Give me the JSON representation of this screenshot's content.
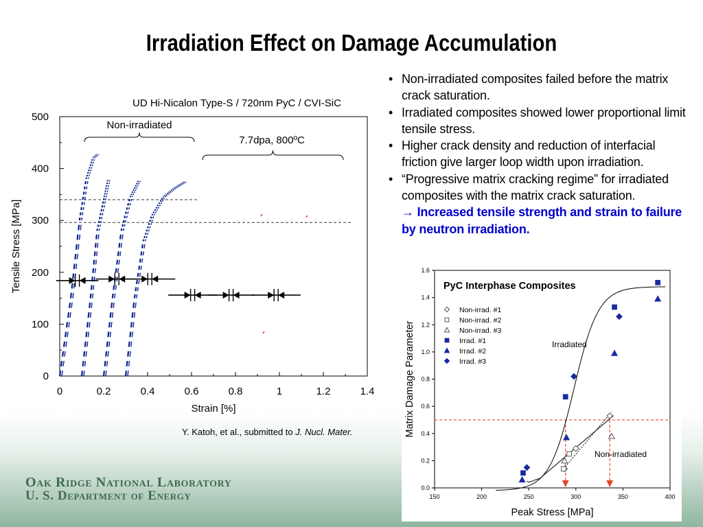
{
  "slide": {
    "title": "Irradiation Effect on Damage Accumulation",
    "bullets": [
      {
        "text": "Non-irradiated composites failed before the matrix crack saturation."
      },
      {
        "text": "Irradiated composites showed lower proportional limit tensile stress."
      },
      {
        "text": "Higher crack density and reduction of interfacial friction give larger loop width upon irradiation."
      },
      {
        "text": "“Progressive matrix cracking regime” for irradiated composites with the matrix crack saturation.",
        "highlight": "→ Increased tensile strength and strain to failure by neutron irradiation."
      }
    ],
    "bullet_symbol": "•",
    "footer": {
      "line1": "Oak Ridge National Laboratory",
      "line2": "U. S. Department of Energy",
      "color": "#3f6b50"
    }
  },
  "chart_data": [
    {
      "type": "line",
      "title": "UD Hi-Nicalon Type-S / 720nm PyC / CVI-SiC",
      "xlabel": "Strain [%]",
      "ylabel": "Tensile Stress [MPa]",
      "xlim": [
        0,
        1.4
      ],
      "ylim": [
        0,
        500
      ],
      "xticks": [
        "0",
        "0.2",
        "0.4",
        "0.6",
        "0.8",
        "1",
        "1.2",
        "1.4"
      ],
      "yticks": [
        "0",
        "100",
        "200",
        "300",
        "400",
        "500"
      ],
      "annotations": {
        "group1": "Non-irradiated",
        "group2": "7.7dpa, 800ºC",
        "citation": "Y. Katoh, et al., submitted to ",
        "journal": "J. Nucl. Mater."
      },
      "reference_lines": [
        {
          "y": 340,
          "x_end": 0.63
        },
        {
          "y": 296,
          "x_end": 1.33
        }
      ],
      "color": "#0a1f8f",
      "series": [
        {
          "values": [
            [
              0.0,
              0
            ],
            [
              0.05,
              150
            ],
            [
              0.09,
              300
            ],
            [
              0.12,
              380
            ],
            [
              0.15,
              420
            ],
            [
              0.17,
              428
            ]
          ]
        },
        {
          "values": [
            [
              0.1,
              0
            ],
            [
              0.14,
              150
            ],
            [
              0.17,
              280
            ],
            [
              0.2,
              340
            ],
            [
              0.22,
              380
            ]
          ]
        },
        {
          "values": [
            [
              0.2,
              0
            ],
            [
              0.24,
              150
            ],
            [
              0.28,
              280
            ],
            [
              0.32,
              345
            ],
            [
              0.36,
              378
            ]
          ]
        },
        {
          "values": [
            [
              0.3,
              0
            ],
            [
              0.34,
              150
            ],
            [
              0.38,
              260
            ],
            [
              0.42,
              310
            ],
            [
              0.47,
              345
            ],
            [
              0.52,
              362
            ],
            [
              0.57,
              375
            ]
          ]
        }
      ],
      "loop_width_markers": [
        {
          "y": 184,
          "x": [
            0.04,
            0.12
          ]
        },
        {
          "y": 187,
          "x": [
            0.22,
            0.3
          ]
        },
        {
          "y": 187,
          "x": [
            0.35,
            0.47
          ]
        },
        {
          "y": 156,
          "x": [
            0.55,
            0.66
          ]
        },
        {
          "y": 156,
          "x": [
            0.73,
            0.83
          ]
        },
        {
          "y": 156,
          "x": [
            0.93,
            1.04
          ]
        }
      ]
    },
    {
      "type": "scatter",
      "title": "PyC Interphase Composites",
      "xlabel": "Peak Stress [MPa]",
      "ylabel": "Matrix Damage Parameter",
      "xlim": [
        150,
        400
      ],
      "ylim": [
        0,
        1.6
      ],
      "xticks": [
        "150",
        "200",
        "250",
        "300",
        "350",
        "400"
      ],
      "yticks": [
        "0.0",
        "0.2",
        "0.4",
        "0.6",
        "0.8",
        "1.0",
        "1.2",
        "1.4",
        "1.6"
      ],
      "annotations": {
        "irradiated": "Irradiated",
        "nonirradiated": "Non-irradiated"
      },
      "threshold": 0.5,
      "arrow_x": [
        289,
        336
      ],
      "series": [
        {
          "name": "Non-irrad. #1",
          "marker": "diamond-open",
          "values": [
            [
              288,
              0.14
            ],
            [
              300,
              0.29
            ],
            [
              336,
              0.53
            ]
          ]
        },
        {
          "name": "Non-irrad. #2",
          "marker": "square-open",
          "values": [
            [
              287,
              0.14
            ],
            [
              293,
              0.25
            ]
          ]
        },
        {
          "name": "Non-irrad. #3",
          "marker": "triangle-open",
          "values": [
            [
              288,
              0.2
            ],
            [
              338,
              0.38
            ]
          ]
        },
        {
          "name": "Irrad. #1",
          "marker": "square",
          "values": [
            [
              244,
              0.11
            ],
            [
              289,
              0.67
            ],
            [
              341,
              1.33
            ],
            [
              387,
              1.51
            ]
          ]
        },
        {
          "name": "Irrad. #2",
          "marker": "triangle",
          "values": [
            [
              243,
              0.06
            ],
            [
              290,
              0.37
            ],
            [
              341,
              0.99
            ],
            [
              387,
              1.39
            ]
          ]
        },
        {
          "name": "Irrad. #3",
          "marker": "diamond",
          "values": [
            [
              248,
              0.15
            ],
            [
              298,
              0.82
            ],
            [
              346,
              1.26
            ]
          ]
        }
      ],
      "colors": {
        "irrad": "#1a2a9f",
        "nonirrad": "#555555",
        "ref": "#e0472a"
      }
    }
  ]
}
